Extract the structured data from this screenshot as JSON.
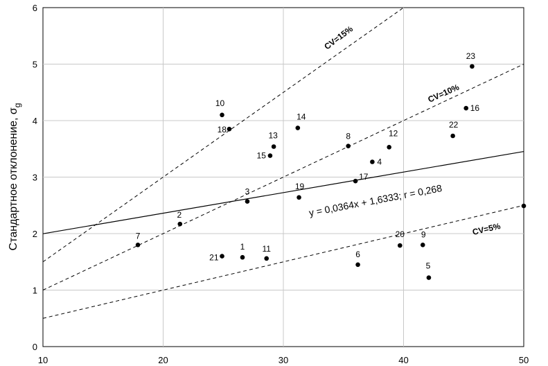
{
  "chart_data": {
    "type": "scatter",
    "ylabel": "Стандартное отклонение, σg",
    "xlim": [
      10,
      50
    ],
    "ylim": [
      0,
      6
    ],
    "x_ticks": [
      10,
      20,
      30,
      40,
      50
    ],
    "y_ticks": [
      0,
      1,
      2,
      3,
      4,
      5,
      6
    ],
    "points": [
      {
        "label": "1",
        "x": 26.6,
        "y": 1.58
      },
      {
        "label": "2",
        "x": 21.4,
        "y": 2.17
      },
      {
        "label": "3",
        "x": 27.0,
        "y": 2.57
      },
      {
        "label": "4",
        "x": 37.4,
        "y": 3.27
      },
      {
        "label": "5",
        "x": 42.1,
        "y": 1.22
      },
      {
        "label": "6",
        "x": 36.2,
        "y": 1.45
      },
      {
        "label": "7",
        "x": 17.9,
        "y": 1.8
      },
      {
        "label": "8",
        "x": 35.4,
        "y": 3.55
      },
      {
        "label": "9",
        "x": 41.6,
        "y": 1.8
      },
      {
        "label": "10",
        "x": 24.9,
        "y": 4.1
      },
      {
        "label": "11",
        "x": 28.6,
        "y": 1.56
      },
      {
        "label": "12",
        "x": 38.8,
        "y": 3.53
      },
      {
        "label": "13",
        "x": 29.2,
        "y": 3.54
      },
      {
        "label": "14",
        "x": 31.2,
        "y": 3.87
      },
      {
        "label": "15",
        "x": 28.9,
        "y": 3.38
      },
      {
        "label": "16",
        "x": 45.2,
        "y": 4.22
      },
      {
        "label": "17",
        "x": 36.0,
        "y": 2.93
      },
      {
        "label": "18",
        "x": 25.5,
        "y": 3.85
      },
      {
        "label": "19",
        "x": 31.3,
        "y": 2.64
      },
      {
        "label": "20",
        "x": 39.7,
        "y": 1.79
      },
      {
        "label": "21",
        "x": 24.9,
        "y": 1.6
      },
      {
        "label": "22",
        "x": 44.1,
        "y": 3.73
      },
      {
        "label": "23",
        "x": 45.7,
        "y": 4.96
      },
      {
        "label": "",
        "x": 50.0,
        "y": 2.49
      }
    ],
    "regression": {
      "slope": 0.0364,
      "intercept": 1.6333,
      "label": "y = 0,0364x + 1,6333; r = 0,268"
    },
    "cv_lines": [
      {
        "label": "CV=15%",
        "slope": 0.15
      },
      {
        "label": "CV=10%",
        "slope": 0.1
      },
      {
        "label": "CV=5%",
        "slope": 0.05
      }
    ]
  }
}
